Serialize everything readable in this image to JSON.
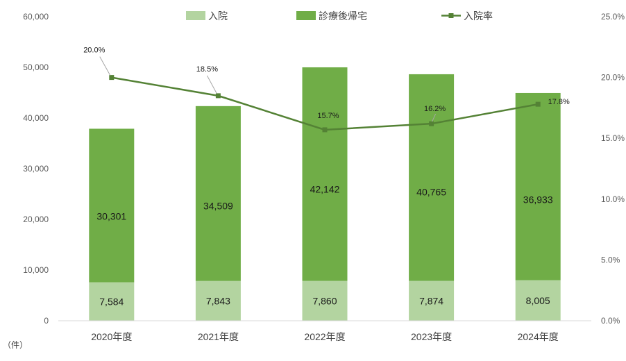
{
  "chart_data": {
    "type": "bar",
    "stacked": true,
    "categories": [
      "2020年度",
      "2021年度",
      "2022年度",
      "2023年度",
      "2024年度"
    ],
    "series": [
      {
        "name": "入院",
        "type": "bar",
        "axis": "left",
        "color": "#b3d4a0",
        "values": [
          7584,
          7843,
          7860,
          7874,
          8005
        ],
        "labels": [
          "7,584",
          "7,843",
          "7,860",
          "7,874",
          "8,005"
        ]
      },
      {
        "name": "診療後帰宅",
        "type": "bar",
        "axis": "left",
        "color": "#70ad47",
        "values": [
          30301,
          34509,
          42142,
          40765,
          36933
        ],
        "labels": [
          "30,301",
          "34,509",
          "42,142",
          "40,765",
          "36,933"
        ]
      },
      {
        "name": "入院率",
        "type": "line",
        "axis": "right",
        "color": "#548235",
        "values": [
          20.0,
          18.5,
          15.7,
          16.2,
          17.8
        ],
        "labels": [
          "20.0%",
          "18.5%",
          "15.7%",
          "16.2%",
          "17.8%"
        ]
      }
    ],
    "y_left": {
      "min": 0,
      "max": 60000,
      "ticks": [
        "0",
        "10,000",
        "20,000",
        "30,000",
        "40,000",
        "50,000",
        "60,000"
      ],
      "unit": "（件）"
    },
    "y_right": {
      "min": 0,
      "max": 25,
      "ticks": [
        "0.0%",
        "5.0%",
        "10.0%",
        "15.0%",
        "20.0%",
        "25.0%"
      ]
    },
    "legend": "top",
    "grid": false
  }
}
